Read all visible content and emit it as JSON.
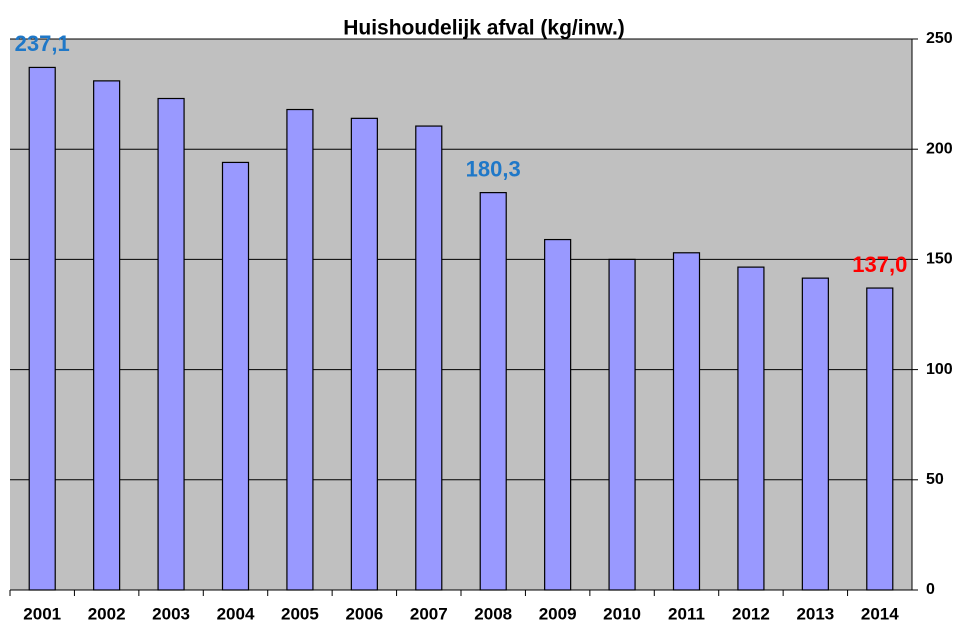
{
  "chart_data": {
    "type": "bar",
    "title": "Huishoudelijk afval (kg/inw.)",
    "categories": [
      "2001",
      "2002",
      "2003",
      "2004",
      "2005",
      "2006",
      "2007",
      "2008",
      "2009",
      "2010",
      "2011",
      "2012",
      "2013",
      "2014"
    ],
    "values": [
      237.1,
      231,
      223,
      194,
      218,
      214,
      210.5,
      180.3,
      159,
      150,
      153,
      146.5,
      141.5,
      137.0
    ],
    "value_labels": [
      "237,1",
      null,
      null,
      null,
      null,
      null,
      null,
      "180,3",
      null,
      null,
      null,
      null,
      null,
      "137,0"
    ],
    "value_label_colors": [
      "#1f78c8",
      null,
      null,
      null,
      null,
      null,
      null,
      "#1f78c8",
      null,
      null,
      null,
      null,
      null,
      "#ff0000"
    ],
    "color": "#9999ff",
    "ylim": [
      0,
      250
    ],
    "yticks": [
      0,
      50,
      100,
      150,
      200,
      250
    ],
    "grid": true,
    "y_axis_side": "right"
  }
}
